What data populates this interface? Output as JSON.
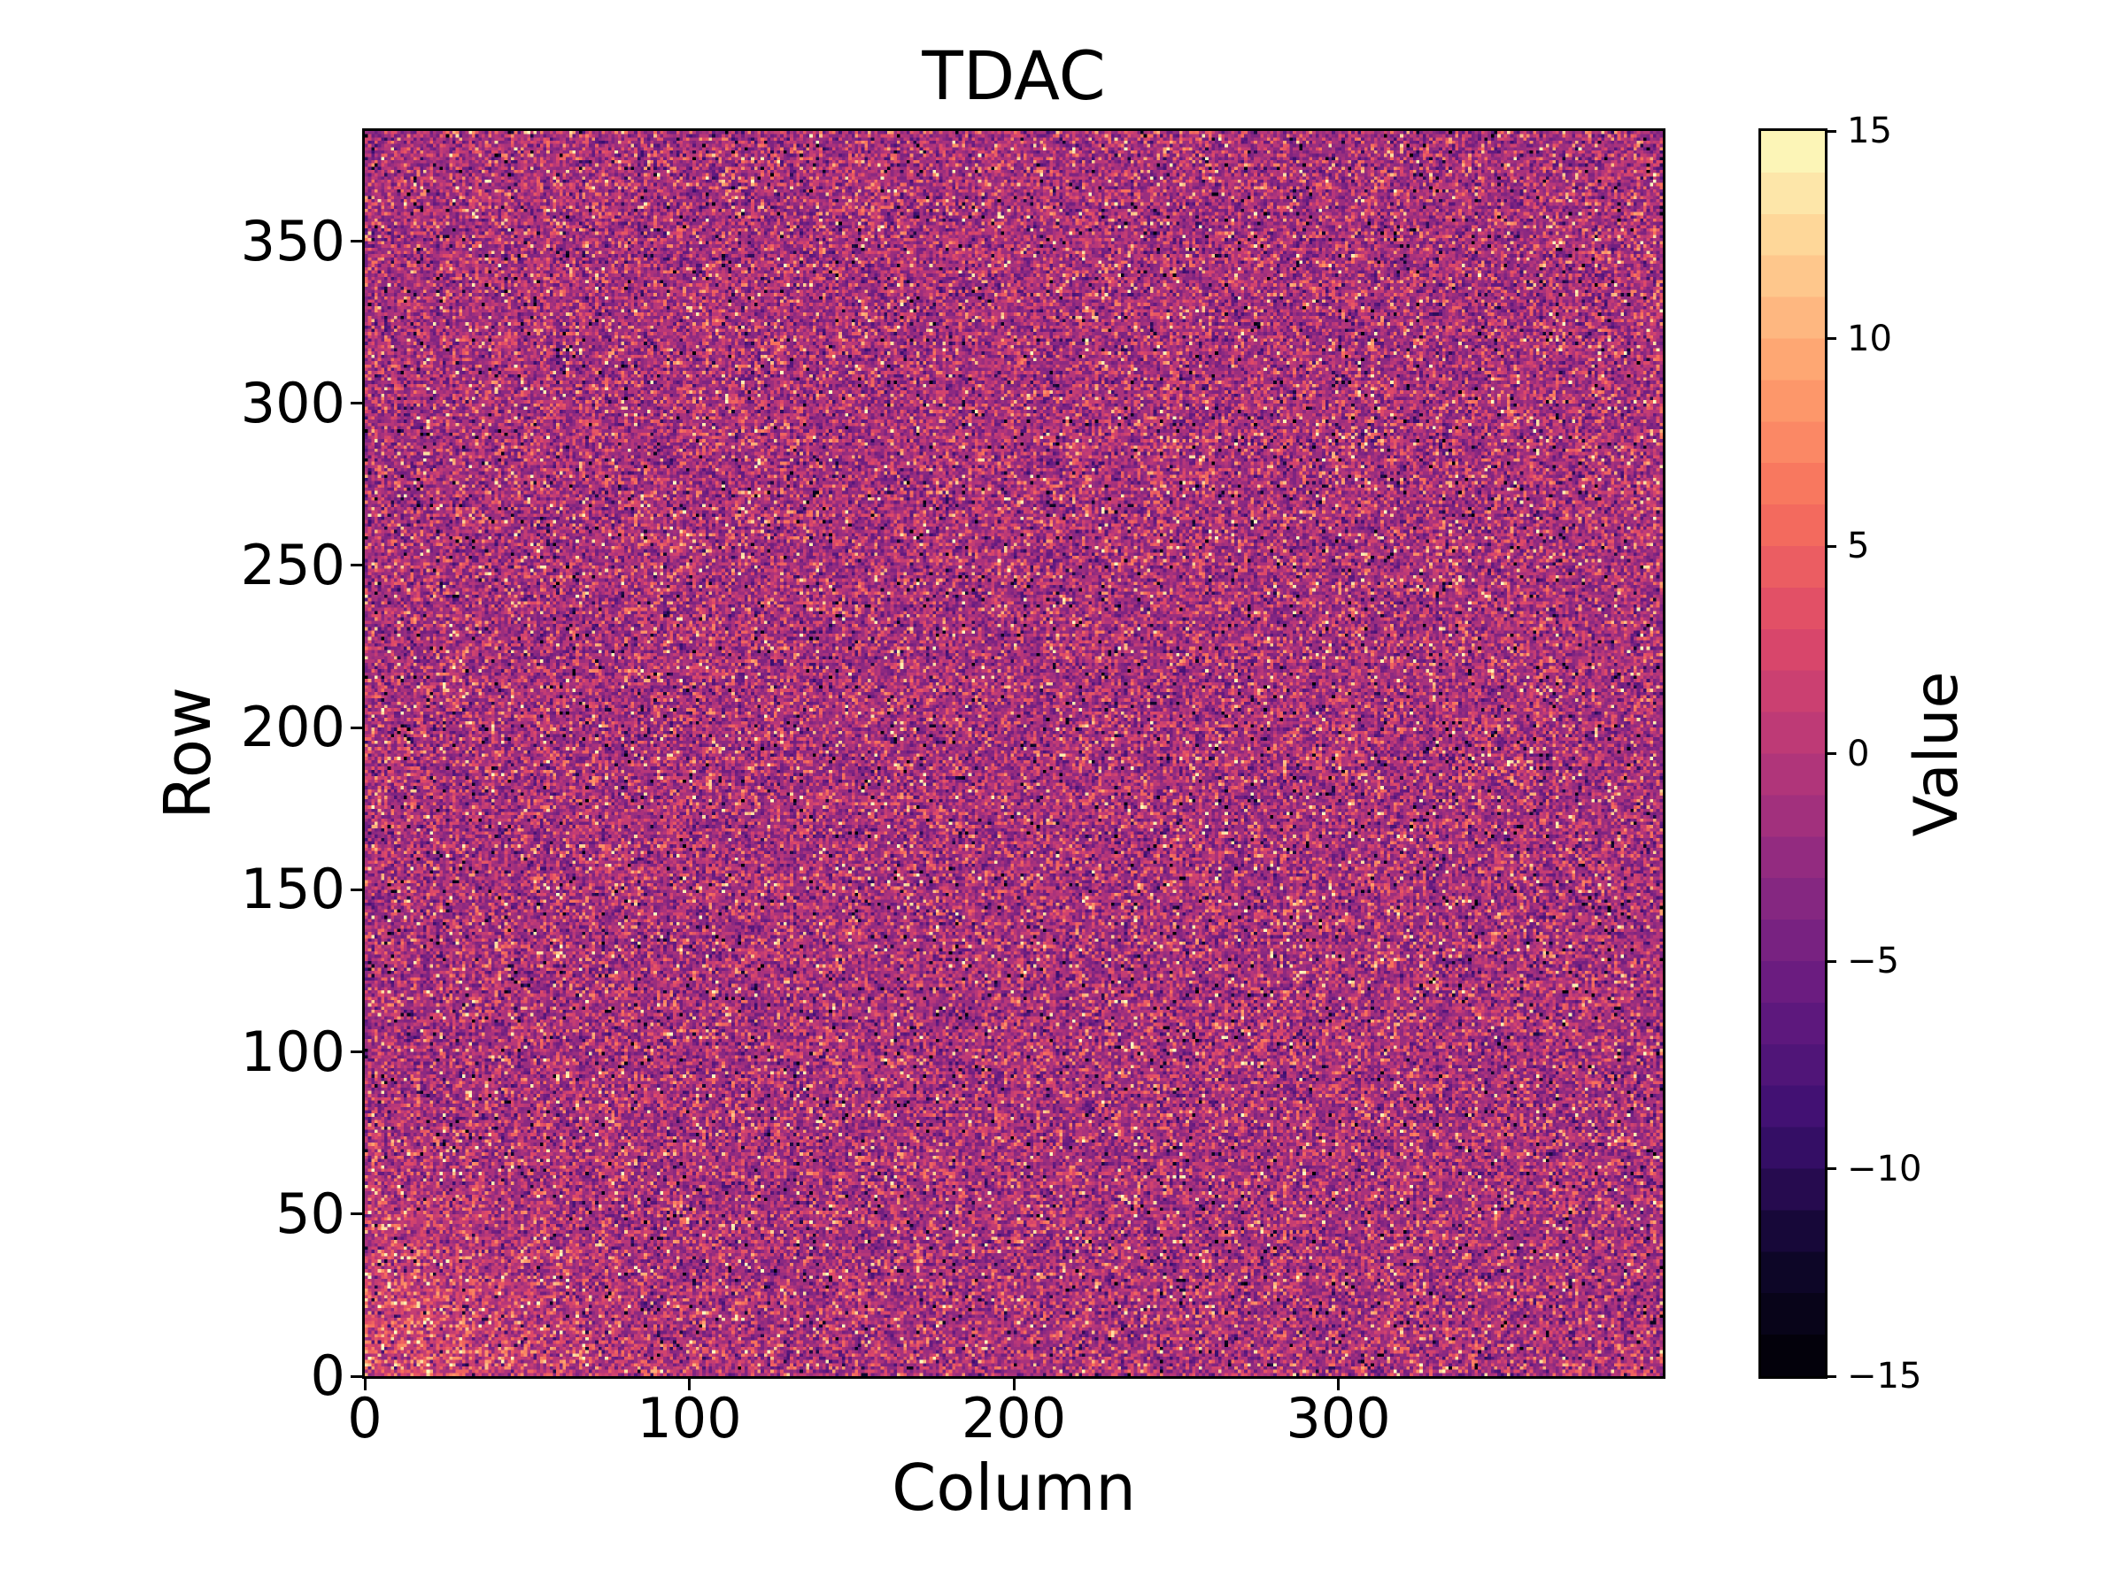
{
  "figure": {
    "title": "TDAC",
    "background_color": "#ffffff",
    "text_color": "#000000"
  },
  "x_axis": {
    "label": "Column",
    "tick_labels": [
      "0",
      "100",
      "200",
      "300"
    ],
    "tick_values": [
      0,
      100,
      200,
      300
    ],
    "range": [
      0,
      400
    ]
  },
  "y_axis": {
    "label": "Row",
    "tick_labels": [
      "0",
      "50",
      "100",
      "150",
      "200",
      "250",
      "300",
      "350"
    ],
    "tick_values": [
      0,
      50,
      100,
      150,
      200,
      250,
      300,
      350
    ],
    "range": [
      0,
      384
    ]
  },
  "colorbar": {
    "label": "Value",
    "tick_labels": [
      "15",
      "10",
      "5",
      "0",
      "−5",
      "−10",
      "−15"
    ],
    "tick_values": [
      15,
      10,
      5,
      0,
      -5,
      -10,
      -15
    ],
    "vmin": -15,
    "vmax": 15,
    "segments": 30,
    "colormap": "magma",
    "position": "right"
  },
  "chart_data": {
    "type": "heatmap",
    "title": "TDAC",
    "xlabel": "Column",
    "ylabel": "Row",
    "colorbar_label": "Value",
    "columns": 400,
    "rows": 384,
    "xlim": [
      0,
      400
    ],
    "ylim": [
      0,
      384
    ],
    "value_range": [
      -15,
      15
    ],
    "value_step": 1,
    "colormap": "magma",
    "grid": false,
    "x_ticks": [
      0,
      100,
      200,
      300
    ],
    "y_ticks": [
      0,
      50,
      100,
      150,
      200,
      250,
      300,
      350
    ],
    "colorbar_ticks": [
      15,
      10,
      5,
      0,
      -5,
      -10,
      -15
    ],
    "data_description": "400x384 per-pixel TDAC trim map rendered as random speckle noise: bulk of pixels between -5 and +2 (purple/magenta), ~13% warm pixels around +3..+8 (salmon/orange), ~3% bright outliers +8..+15 (cream/yellow), ~2.5% dark outliers -15..-8 (near black), with a brighter (higher-value) patch in the bottom-left corner spanning roughly columns 0-60 and rows 0-45",
    "noise_model": {
      "seed": 1337,
      "base_mean": -1.8,
      "base_sigma": 2.9,
      "warm_fraction": 0.135,
      "warm_mean": 4.8,
      "warm_sigma": 2.4,
      "bright_outlier_fraction": 0.03,
      "bright_outlier_range": [
        8,
        15
      ],
      "dark_outlier_fraction": 0.025,
      "dark_outlier_range": [
        -15,
        -8.5
      ],
      "hotspot": {
        "col_center": 0,
        "row_center": 0,
        "sigma_cols": 42,
        "sigma_rows": 34,
        "amplitude": 3.8
      }
    }
  }
}
